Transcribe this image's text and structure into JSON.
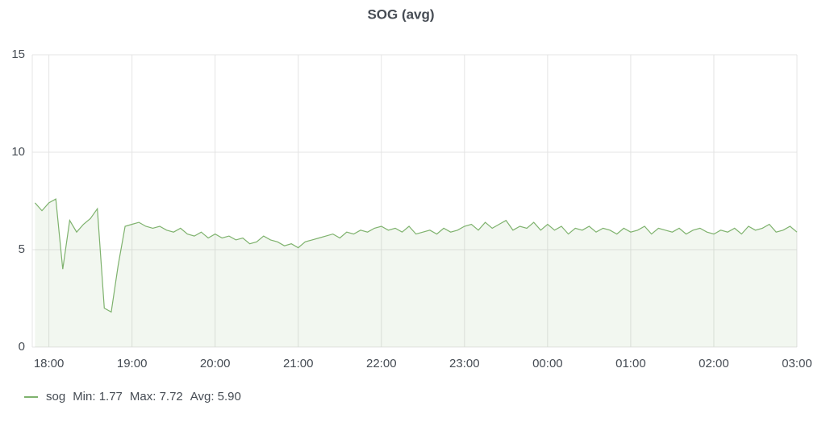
{
  "chart_data": {
    "type": "line",
    "title": "SOG (avg)",
    "x": [
      "17:50",
      "17:55",
      "18:00",
      "18:05",
      "18:10",
      "18:15",
      "18:20",
      "18:25",
      "18:30",
      "18:35",
      "18:40",
      "18:45",
      "18:50",
      "18:55",
      "19:00",
      "19:05",
      "19:10",
      "19:15",
      "19:20",
      "19:25",
      "19:30",
      "19:35",
      "19:40",
      "19:45",
      "19:50",
      "19:55",
      "20:00",
      "20:05",
      "20:10",
      "20:15",
      "20:20",
      "20:25",
      "20:30",
      "20:35",
      "20:40",
      "20:45",
      "20:50",
      "20:55",
      "21:00",
      "21:05",
      "21:10",
      "21:15",
      "21:20",
      "21:25",
      "21:30",
      "21:35",
      "21:40",
      "21:45",
      "21:50",
      "21:55",
      "22:00",
      "22:05",
      "22:10",
      "22:15",
      "22:20",
      "22:25",
      "22:30",
      "22:35",
      "22:40",
      "22:45",
      "22:50",
      "22:55",
      "23:00",
      "23:05",
      "23:10",
      "23:15",
      "23:20",
      "23:25",
      "23:30",
      "23:35",
      "23:40",
      "23:45",
      "23:50",
      "23:55",
      "00:00",
      "00:05",
      "00:10",
      "00:15",
      "00:20",
      "00:25",
      "00:30",
      "00:35",
      "00:40",
      "00:45",
      "00:50",
      "00:55",
      "01:00",
      "01:05",
      "01:10",
      "01:15",
      "01:20",
      "01:25",
      "01:30",
      "01:35",
      "01:40",
      "01:45",
      "01:50",
      "01:55",
      "02:00",
      "02:05",
      "02:10",
      "02:15",
      "02:20",
      "02:25",
      "02:30",
      "02:35",
      "02:40",
      "02:45",
      "02:50",
      "02:55",
      "03:00"
    ],
    "series": [
      {
        "name": "sog",
        "color": "#7eb26d",
        "values": [
          7.4,
          7.0,
          7.4,
          7.6,
          4.0,
          6.5,
          5.9,
          6.3,
          6.6,
          7.1,
          2.0,
          1.8,
          4.2,
          6.2,
          6.3,
          6.4,
          6.2,
          6.1,
          6.2,
          6.0,
          5.9,
          6.1,
          5.8,
          5.7,
          5.9,
          5.6,
          5.8,
          5.6,
          5.7,
          5.5,
          5.6,
          5.3,
          5.4,
          5.7,
          5.5,
          5.4,
          5.2,
          5.3,
          5.1,
          5.4,
          5.5,
          5.6,
          5.7,
          5.8,
          5.6,
          5.9,
          5.8,
          6.0,
          5.9,
          6.1,
          6.2,
          6.0,
          6.1,
          5.9,
          6.2,
          5.8,
          5.9,
          6.0,
          5.8,
          6.1,
          5.9,
          6.0,
          6.2,
          6.3,
          6.0,
          6.4,
          6.1,
          6.3,
          6.5,
          6.0,
          6.2,
          6.1,
          6.4,
          6.0,
          6.3,
          6.0,
          6.2,
          5.8,
          6.1,
          6.0,
          6.2,
          5.9,
          6.1,
          6.0,
          5.8,
          6.1,
          5.9,
          6.0,
          6.2,
          5.8,
          6.1,
          6.0,
          5.9,
          6.1,
          5.8,
          6.0,
          6.1,
          5.9,
          5.8,
          6.0,
          5.9,
          6.1,
          5.8,
          6.2,
          6.0,
          6.1,
          6.3,
          5.9,
          6.0,
          6.2,
          5.9
        ],
        "stats": [
          "Min: 1.77",
          "Max: 7.72",
          "Avg: 5.90"
        ]
      }
    ],
    "xlim": [
      "17:48",
      "03:00"
    ],
    "xticks": [
      "18:00",
      "19:00",
      "20:00",
      "21:00",
      "22:00",
      "23:00",
      "00:00",
      "01:00",
      "02:00",
      "03:00"
    ],
    "ylim": [
      0,
      15
    ],
    "yticks": [
      0,
      5,
      10,
      15
    ],
    "grid": true
  }
}
